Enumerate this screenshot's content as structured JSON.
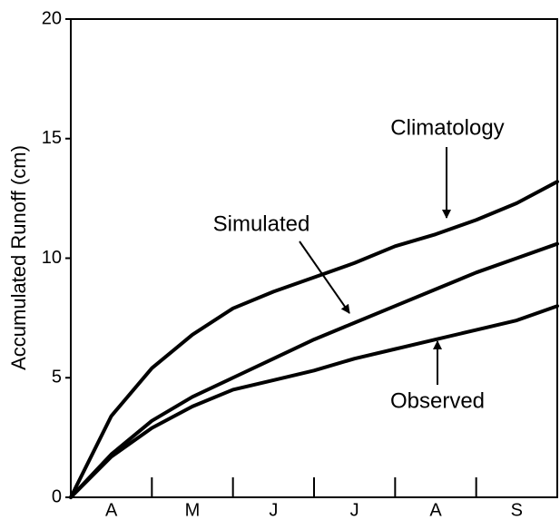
{
  "chart_data": {
    "type": "line",
    "y_label": "Accumulated Runoff (cm)",
    "categories": [
      null,
      "A",
      null,
      "M",
      null,
      "J",
      null,
      "J",
      null,
      "A",
      null,
      "S",
      null
    ],
    "series": [
      {
        "name": "Climatology",
        "color": "#000000",
        "values": [
          0,
          3.4,
          5.4,
          6.8,
          7.9,
          8.6,
          9.2,
          9.8,
          10.5,
          11.0,
          11.6,
          12.3,
          13.2
        ]
      },
      {
        "name": "Simulated",
        "color": "#000000",
        "values": [
          0,
          1.8,
          3.2,
          4.2,
          5.0,
          5.8,
          6.6,
          7.3,
          8.0,
          8.7,
          9.4,
          10.0,
          10.6
        ]
      },
      {
        "name": "Observed",
        "color": "#000000",
        "values": [
          0,
          1.7,
          2.9,
          3.8,
          4.5,
          4.9,
          5.3,
          5.8,
          6.2,
          6.6,
          7.0,
          7.4,
          8.0
        ]
      }
    ],
    "ylim": [
      0,
      20
    ],
    "yticks": [
      0,
      5,
      10,
      15,
      20
    ],
    "grid": false
  }
}
